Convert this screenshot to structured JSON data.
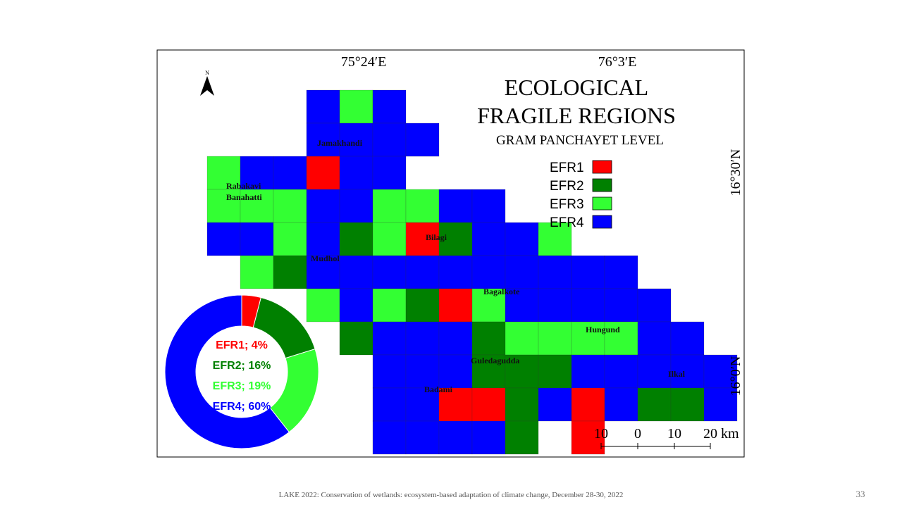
{
  "map": {
    "title": [
      "ECOLOGICAL",
      "FRAGILE REGIONS"
    ],
    "subtitle": "GRAM PANCHAYET LEVEL",
    "north": "N",
    "longitudes": [
      "75°24′E",
      "76°3′E"
    ],
    "latitudes": [
      "16°30′N",
      "16°0′N"
    ],
    "places": [
      "Jamakhandi",
      "Rabakavi",
      "Banahatti",
      "Bilagi",
      "Mudhol",
      "Bagalkote",
      "Hungund",
      "Guledagudda",
      "Badami",
      "Ilkal"
    ],
    "scale_labels": [
      "10",
      "0",
      "10",
      "20 km"
    ]
  },
  "chart_data": {
    "type": "donut",
    "categories": [
      "EFR1",
      "EFR2",
      "EFR3",
      "EFR4"
    ],
    "values": [
      4,
      16,
      19,
      60
    ],
    "value_labels": [
      "EFR1; 4%",
      "EFR2; 16%",
      "EFR3; 19%",
      "EFR4; 60%"
    ],
    "colors": [
      "#ff0000",
      "#008000",
      "#33ff33",
      "#0000ff"
    ]
  },
  "footer": "LAKE 2022: Conservation of wetlands: ecosystem-based adaptation of climate change,  December 28-30, 2022",
  "page_number": "33"
}
